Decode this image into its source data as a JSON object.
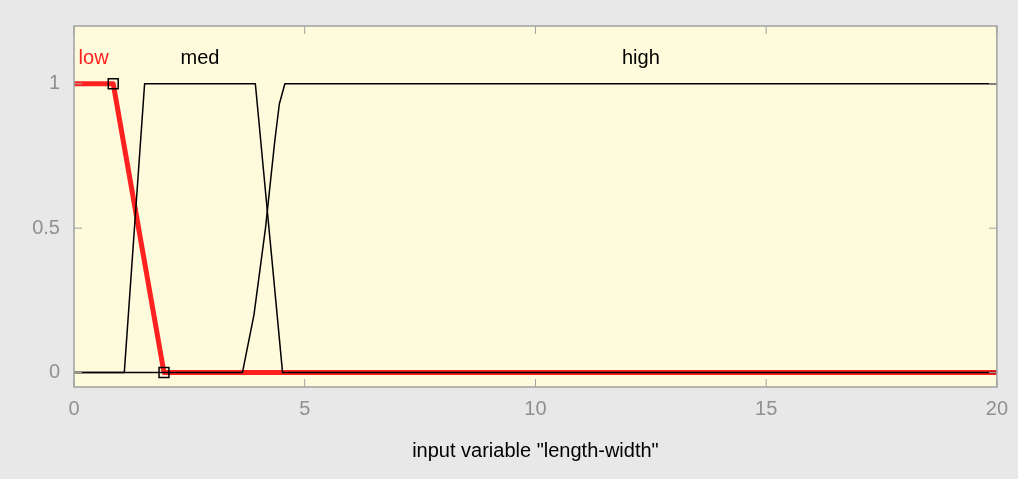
{
  "chart_data": {
    "type": "line",
    "xlabel": "input variable \"length-width\"",
    "xlim": [
      0,
      20
    ],
    "xticks": [
      0,
      5,
      10,
      15,
      20
    ],
    "ylim": [
      -0.05,
      1.2
    ],
    "yticks": [
      0,
      0.5,
      1
    ],
    "grid": false,
    "legend": false,
    "marker": "none",
    "series": [
      {
        "name": "low",
        "color": "#ff2020",
        "x": [
          0,
          0.85,
          1.95,
          20
        ],
        "values": [
          1,
          1,
          0,
          0
        ]
      },
      {
        "name": "med",
        "color": "#000000",
        "x": [
          0,
          1.09,
          1.53,
          3.93,
          4.52,
          20
        ],
        "values": [
          0,
          0,
          1,
          1,
          0,
          0
        ]
      },
      {
        "name": "high",
        "color": "#000000",
        "x": [
          0,
          3.65,
          3.9,
          4.15,
          4.35,
          4.45,
          4.57,
          20
        ],
        "values": [
          0,
          0,
          0.2,
          0.5,
          0.8,
          0.93,
          1,
          1
        ]
      },
      {
        "type": "scatter",
        "color": "#000000",
        "marker": "square",
        "x": [
          0.85,
          1.95
        ],
        "values": [
          1,
          0
        ]
      }
    ]
  }
}
